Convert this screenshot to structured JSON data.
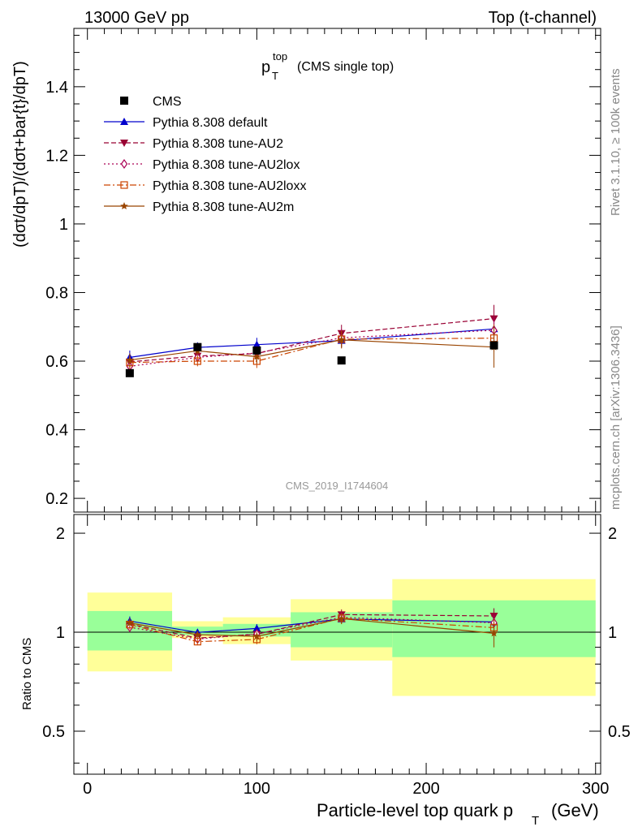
{
  "header": {
    "left": "13000 GeV pp",
    "right": "Top (t-channel)"
  },
  "title": {
    "main": "p",
    "sub": "T",
    "sup": "top",
    "suffix": "(CMS single top)"
  },
  "side_labels": {
    "rivet": "Rivet 3.1.10, ≥ 100k events",
    "mcplots": "mcplots.cern.ch [arXiv:1306.3436]"
  },
  "watermark": "CMS_2019_I1744604",
  "axes": {
    "ylabel_top": "(dσt/dpT)/(dσt+bar{t}/dpT)",
    "ylabel_ratio": "Ratio to CMS",
    "xlabel": "Particle-level top quark p",
    "xlabel_sub": "T",
    "xlabel_unit": "(GeV)"
  },
  "colors": {
    "yellow_band": "#ffff99",
    "green_band": "#99ff99"
  },
  "chart_data": {
    "type": "scatter",
    "x_range": [
      -8,
      303
    ],
    "top_ylim": [
      0.16,
      1.57
    ],
    "ratio_ylim": [
      0.37,
      2.28
    ],
    "ratio_log": true,
    "x_ticks": [
      0,
      100,
      200,
      300
    ],
    "top_y_ticks": [
      0.2,
      0.4,
      0.6,
      0.8,
      1,
      1.2,
      1.4
    ],
    "ratio_y_ticks": [
      0.5,
      1,
      2
    ],
    "bins": [
      [
        0,
        50
      ],
      [
        50,
        80
      ],
      [
        80,
        120
      ],
      [
        120,
        180
      ],
      [
        180,
        300
      ]
    ],
    "data": {
      "name": "CMS",
      "x": [
        25,
        65,
        100,
        150,
        240
      ],
      "values": [
        0.565,
        0.641,
        0.631,
        0.602,
        0.646
      ]
    },
    "bands": {
      "green": [
        [
          0.88,
          1.16
        ],
        [
          0.98,
          1.04
        ],
        [
          0.97,
          1.06
        ],
        [
          0.9,
          1.15
        ],
        [
          0.84,
          1.25
        ]
      ],
      "yellow": [
        [
          0.76,
          1.32
        ],
        [
          0.96,
          1.08
        ],
        [
          0.92,
          1.11
        ],
        [
          0.82,
          1.26
        ],
        [
          0.64,
          1.45
        ]
      ]
    },
    "series": [
      {
        "name": "Pythia 8.308 default",
        "color": "#0000cc",
        "dash": "",
        "marker": "triangle-up",
        "values": [
          0.611,
          0.64,
          0.648,
          0.66,
          0.694
        ],
        "errors": [
          0.02,
          0.015,
          0.02,
          0.02,
          0.035
        ]
      },
      {
        "name": "Pythia 8.308 tune-AU2",
        "color": "#990033",
        "dash": "6,3",
        "marker": "triangle-down",
        "values": [
          0.598,
          0.615,
          0.622,
          0.681,
          0.724
        ],
        "errors": [
          0.02,
          0.015,
          0.02,
          0.025,
          0.04
        ]
      },
      {
        "name": "Pythia 8.308 tune-AU2lox",
        "color": "#aa0055",
        "dash": "2,3",
        "marker": "diamond-open",
        "values": [
          0.585,
          0.611,
          0.624,
          0.668,
          0.69
        ],
        "errors": [
          0.02,
          0.015,
          0.02,
          0.025,
          0.04
        ]
      },
      {
        "name": "Pythia 8.308 tune-AU2loxx",
        "color": "#cc4400",
        "dash": "8,3,2,3",
        "marker": "square-open",
        "values": [
          0.596,
          0.6,
          0.6,
          0.664,
          0.667
        ],
        "errors": [
          0.02,
          0.015,
          0.02,
          0.025,
          0.04
        ]
      },
      {
        "name": "Pythia 8.308 tune-AU2m",
        "color": "#994400",
        "dash": "",
        "marker": "star",
        "values": [
          0.603,
          0.63,
          0.613,
          0.662,
          0.641
        ],
        "errors": [
          0.02,
          0.015,
          0.02,
          0.025,
          0.06
        ]
      }
    ]
  }
}
